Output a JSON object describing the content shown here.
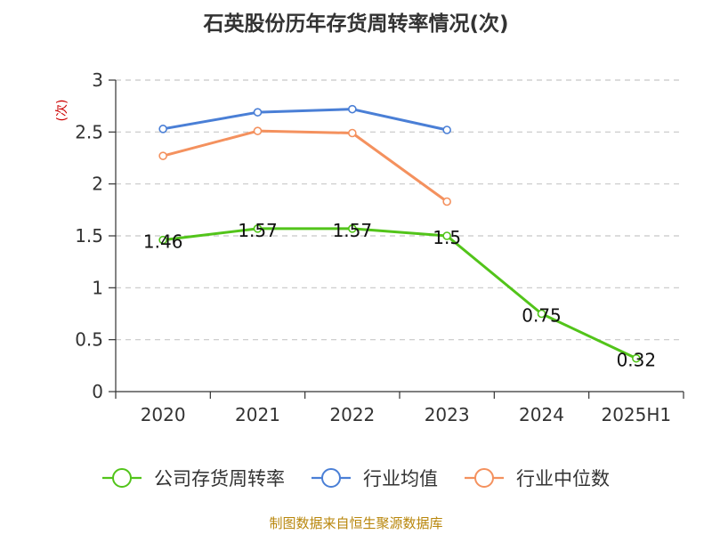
{
  "chart_data": {
    "type": "line",
    "title": "石英股份历年存货周转率情况(次)",
    "ylabel": "(次)",
    "xlabel": "",
    "categories": [
      "2020",
      "2021",
      "2022",
      "2023",
      "2024",
      "2025H1"
    ],
    "ylim": [
      0,
      3
    ],
    "yticks": [
      "0",
      "0.5",
      "1",
      "1.5",
      "2",
      "2.5",
      "3"
    ],
    "grid": true,
    "legend_position": "bottom",
    "series": [
      {
        "name": "公司存货周转率",
        "color": "#52c41a",
        "values": [
          1.46,
          1.57,
          1.57,
          1.5,
          0.75,
          0.32
        ],
        "labels": [
          "1.46",
          "1.57",
          "1.57",
          "1.5",
          "0.75",
          "0.32"
        ]
      },
      {
        "name": "行业均值",
        "color": "#4a7fd6",
        "values": [
          2.53,
          2.69,
          2.72,
          2.52,
          null,
          null
        ]
      },
      {
        "name": "行业中位数",
        "color": "#f4915e",
        "values": [
          2.27,
          2.51,
          2.49,
          1.83,
          null,
          null
        ]
      }
    ],
    "source": "制图数据来自恒生聚源数据库"
  }
}
